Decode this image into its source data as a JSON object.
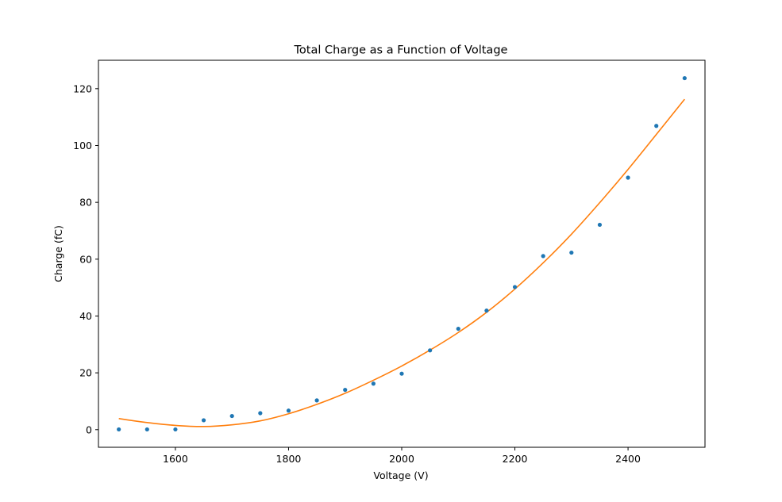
{
  "chart_data": {
    "type": "scatter",
    "title": "Total Charge as a Function of Voltage",
    "xlabel": "Voltage (V)",
    "ylabel": "Charge (fC)",
    "xlim": [
      1464,
      2536
    ],
    "ylim": [
      -6.2,
      130
    ],
    "x_ticks": [
      1600,
      1800,
      2000,
      2200,
      2400
    ],
    "x_tick_labels": [
      "1600",
      "1800",
      "2000",
      "2200",
      "2400"
    ],
    "y_ticks": [
      0,
      20,
      40,
      60,
      80,
      100,
      120
    ],
    "y_tick_labels": [
      "0",
      "20",
      "40",
      "60",
      "80",
      "100",
      "120"
    ],
    "grid": false,
    "series": [
      {
        "type": "scatter",
        "color": "#1f77b4",
        "x": [
          1500,
          1550,
          1600,
          1650,
          1700,
          1750,
          1800,
          1850,
          1900,
          1950,
          2000,
          2050,
          2100,
          2150,
          2200,
          2250,
          2300,
          2350,
          2400,
          2450,
          2500
        ],
        "y": [
          0.1,
          0.1,
          0.1,
          3.3,
          4.8,
          5.8,
          6.7,
          10.3,
          14.0,
          16.2,
          19.7,
          27.9,
          35.5,
          41.9,
          50.2,
          61.1,
          62.3,
          72.1,
          88.7,
          106.9,
          123.7
        ]
      },
      {
        "type": "line",
        "color": "#ff7f0e",
        "x": [
          1500,
          1550,
          1600,
          1650,
          1700,
          1750,
          1800,
          1850,
          1900,
          1950,
          2000,
          2050,
          2100,
          2150,
          2200,
          2250,
          2300,
          2350,
          2400,
          2450,
          2500
        ],
        "y": [
          3.9,
          2.5,
          1.5,
          1.1,
          1.7,
          3.1,
          5.6,
          8.9,
          12.8,
          17.4,
          22.4,
          28.0,
          34.2,
          41.3,
          49.5,
          58.7,
          68.8,
          79.9,
          91.6,
          103.9,
          116.3
        ]
      }
    ]
  }
}
